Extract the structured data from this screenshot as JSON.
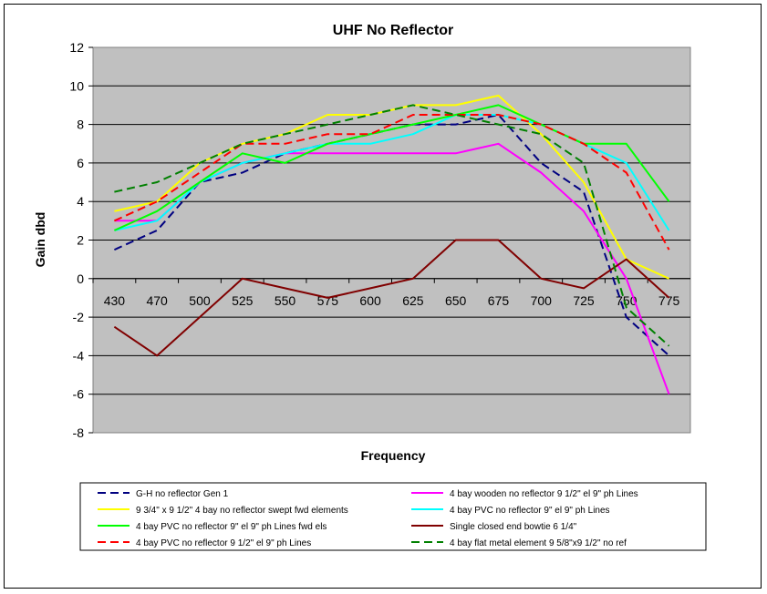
{
  "chart_data": {
    "type": "line",
    "title": "UHF No Reflector",
    "xlabel": "Frequency",
    "ylabel": "Gain dbd",
    "categories": [
      "430",
      "470",
      "500",
      "525",
      "550",
      "575",
      "600",
      "625",
      "650",
      "675",
      "700",
      "725",
      "750",
      "775"
    ],
    "ylim": [
      -8,
      12
    ],
    "yticks": [
      -8,
      -6,
      -4,
      -2,
      0,
      2,
      4,
      6,
      8,
      10,
      12
    ],
    "grid": true,
    "plot_background": "#c0c0c0",
    "legend_position": "bottom",
    "series": [
      {
        "name": "G-H no reflector Gen 1",
        "color": "#000080",
        "dash": "dashed",
        "start": 0,
        "values": [
          1.5,
          2.5,
          5.0,
          5.5,
          6.5,
          7.0,
          7.5,
          8.0,
          8.0,
          8.5,
          6.0,
          4.5,
          -2.0,
          -4.0
        ]
      },
      {
        "name": "4 bay wooden no reflector 9 1/2\" el 9\" ph Lines",
        "color": "#ff00ff",
        "dash": "solid",
        "start": 0,
        "values": [
          3.0,
          3.0,
          5.0,
          6.0,
          6.5,
          6.5,
          6.5,
          6.5,
          6.5,
          7.0,
          5.5,
          3.5,
          0.0,
          -6.0
        ]
      },
      {
        "name": "9 3/4\" x 9 1/2\" 4 bay no reflector swept fwd elements",
        "color": "#ffff00",
        "dash": "solid",
        "start": 0,
        "values": [
          3.5,
          4.0,
          6.0,
          7.0,
          7.5,
          8.5,
          8.5,
          9.0,
          9.0,
          9.5,
          7.5,
          5.0,
          1.0,
          0.0
        ]
      },
      {
        "name": "4 bay PVC no reflector 9\" el 9\" ph Lines",
        "color": "#00ffff",
        "dash": "solid",
        "start": 0,
        "values": [
          2.5,
          3.0,
          5.0,
          6.0,
          6.5,
          7.0,
          7.0,
          7.5,
          8.5,
          8.5,
          8.0,
          7.0,
          6.0,
          2.5
        ]
      },
      {
        "name": "4 bay PVC no reflector 9\" el 9\" ph Lines fwd els",
        "color": "#00ff00",
        "dash": "solid",
        "start": 0,
        "values": [
          2.5,
          3.5,
          5.0,
          6.5,
          6.0,
          7.0,
          7.5,
          8.0,
          8.5,
          9.0,
          8.0,
          7.0,
          7.0,
          4.0
        ]
      },
      {
        "name": "Single closed end bowtie 6 1/4\"",
        "color": "#800000",
        "dash": "solid",
        "start": 0,
        "values": [
          -2.5,
          -4.0,
          -2.0,
          0.0,
          -0.5,
          -1.0,
          -0.5,
          0.0,
          2.0,
          2.0,
          0.0,
          -0.5,
          1.0,
          -1.0
        ]
      },
      {
        "name": "4 bay PVC no reflector 9 1/2\" el 9\" ph Lines",
        "color": "#ff0000",
        "dash": "dashed",
        "start": 0,
        "values": [
          3.0,
          4.0,
          5.5,
          7.0,
          7.0,
          7.5,
          7.5,
          8.5,
          8.5,
          8.5,
          8.0,
          7.0,
          5.5,
          1.5
        ]
      },
      {
        "name": "4 bay flat metal element 9 5/8\"x9 1/2\"  no ref",
        "color": "#008000",
        "dash": "dashed",
        "start": 0,
        "values": [
          4.5,
          5.0,
          6.0,
          7.0,
          7.5,
          8.0,
          8.5,
          9.0,
          8.5,
          8.0,
          7.5,
          6.0,
          -1.5,
          -3.5
        ]
      }
    ]
  }
}
